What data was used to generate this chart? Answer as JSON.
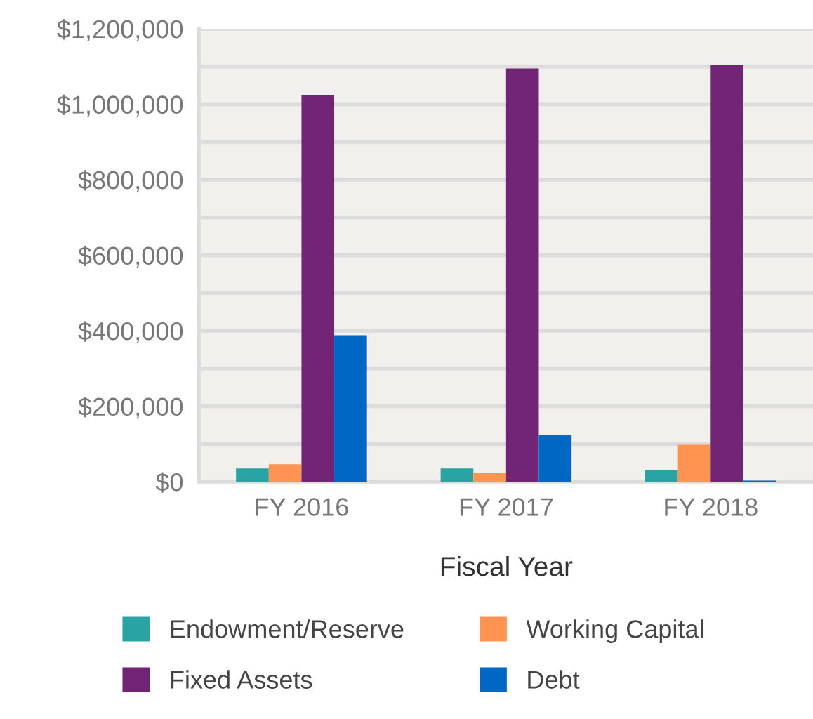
{
  "chart_data": {
    "type": "bar",
    "xlabel": "Fiscal Year",
    "categories": [
      "FY 2016",
      "FY 2017",
      "FY 2018"
    ],
    "series": [
      {
        "name": "Endowment/Reserve",
        "color": "#2aa3a5",
        "values": [
          35000,
          35000,
          31000
        ]
      },
      {
        "name": "Working Capital",
        "color": "#ff9452",
        "values": [
          46000,
          24000,
          98000
        ]
      },
      {
        "name": "Fixed Assets",
        "color": "#722574",
        "values": [
          1025000,
          1095000,
          1103000
        ]
      },
      {
        "name": "Debt",
        "color": "#0067c5",
        "values": [
          388000,
          124000,
          3000
        ]
      }
    ],
    "ylim": [
      0,
      1200000
    ],
    "yticks": [
      {
        "value": 0,
        "label": "$0"
      },
      {
        "value": 100000,
        "label": null
      },
      {
        "value": 200000,
        "label": "$200,000"
      },
      {
        "value": 300000,
        "label": null
      },
      {
        "value": 400000,
        "label": "$400,000"
      },
      {
        "value": 500000,
        "label": null
      },
      {
        "value": 600000,
        "label": "$600,000"
      },
      {
        "value": 700000,
        "label": null
      },
      {
        "value": 800000,
        "label": "$800,000"
      },
      {
        "value": 900000,
        "label": null
      },
      {
        "value": 1000000,
        "label": "$1,000,000"
      },
      {
        "value": 1100000,
        "label": null
      },
      {
        "value": 1200000,
        "label": "$1,200,000"
      }
    ],
    "grid": "y",
    "legend": "bottom"
  }
}
